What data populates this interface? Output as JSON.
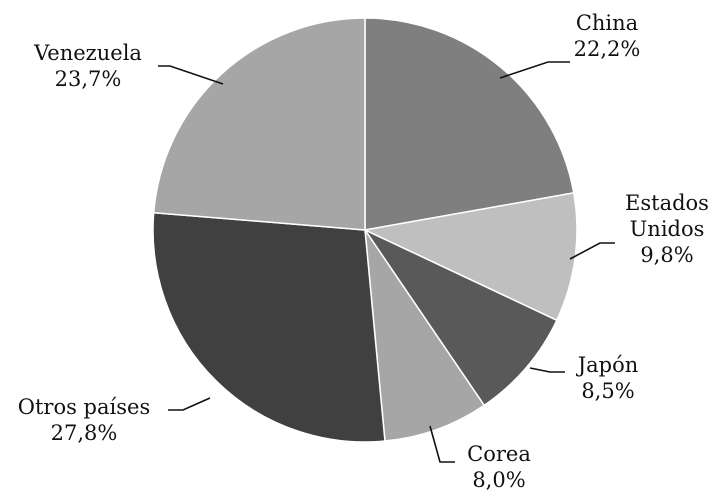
{
  "chart_data": {
    "type": "pie",
    "title": "",
    "slices": [
      {
        "name": "China",
        "label_lines": [
          "China",
          "22,2%"
        ],
        "value": 22.2,
        "color": "#7f7f7f"
      },
      {
        "name": "Estados Unidos",
        "label_lines": [
          "Estados",
          "Unidos",
          "9,8%"
        ],
        "value": 9.8,
        "color": "#bfbfbf"
      },
      {
        "name": "Japón",
        "label_lines": [
          "Japón",
          "8,5%"
        ],
        "value": 8.5,
        "color": "#595959"
      },
      {
        "name": "Corea",
        "label_lines": [
          "Corea",
          "8,0%"
        ],
        "value": 8.0,
        "color": "#a6a6a6"
      },
      {
        "name": "Otros países",
        "label_lines": [
          "Otros países",
          "27,8%"
        ],
        "value": 27.8,
        "color": "#404040"
      },
      {
        "name": "Venezuela",
        "label_lines": [
          "Venezuela",
          "23,7%"
        ],
        "value": 23.7,
        "color": "#a6a6a6"
      }
    ],
    "start_angle": "12 o'clock",
    "direction": "clockwise",
    "legend": "none",
    "data_labels": "outside with leader lines"
  }
}
